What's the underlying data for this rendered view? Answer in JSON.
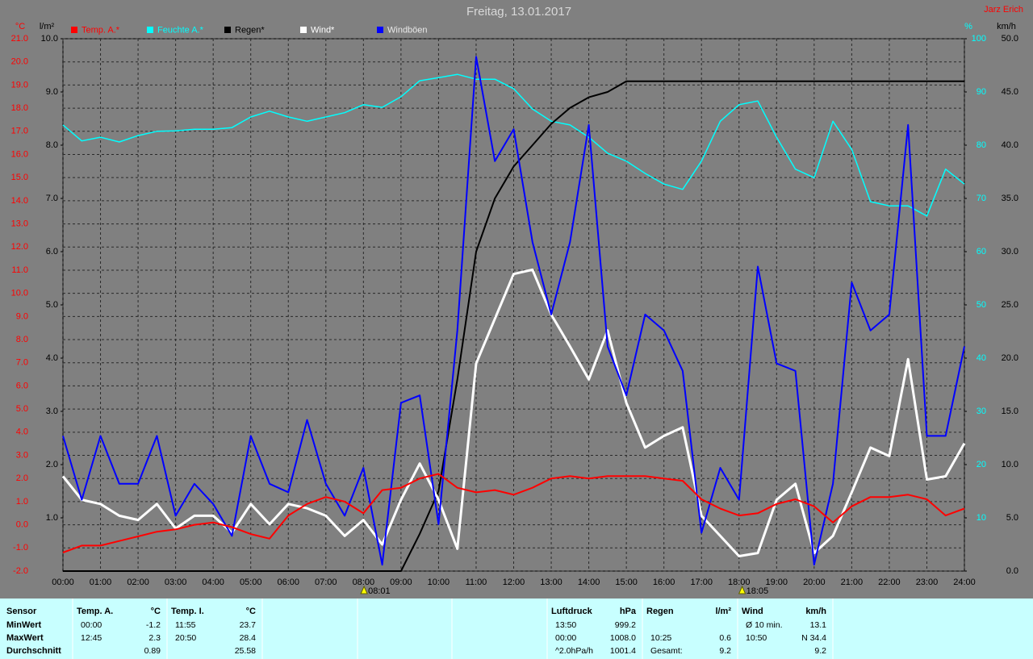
{
  "chart_data": {
    "type": "line",
    "title": "Freitag, 13.01.2017",
    "author": "Jarz Erich",
    "x": [
      0,
      0.5,
      1,
      1.5,
      2,
      2.5,
      3,
      3.5,
      4,
      4.5,
      5,
      5.5,
      6,
      6.5,
      7,
      7.5,
      8,
      8.5,
      9,
      9.5,
      10,
      10.5,
      11,
      11.5,
      12,
      12.5,
      13,
      13.5,
      14,
      14.5,
      15,
      15.5,
      16,
      16.5,
      17,
      17.5,
      18,
      18.5,
      19,
      19.5,
      20,
      20.5,
      21,
      21.5,
      22,
      22.5,
      23,
      23.5,
      24
    ],
    "xlim": [
      0,
      24
    ],
    "xticks": [
      {
        "value": 0,
        "label": "00:00"
      },
      {
        "value": 1,
        "label": "01:00"
      },
      {
        "value": 2,
        "label": "02:00"
      },
      {
        "value": 3,
        "label": "03:00"
      },
      {
        "value": 4,
        "label": "04:00"
      },
      {
        "value": 5,
        "label": "05:00"
      },
      {
        "value": 6,
        "label": "06:00"
      },
      {
        "value": 7,
        "label": "07:00"
      },
      {
        "value": 8,
        "label": "08:00"
      },
      {
        "value": 9,
        "label": "09:00"
      },
      {
        "value": 10,
        "label": "10:00"
      },
      {
        "value": 11,
        "label": "11:00"
      },
      {
        "value": 12,
        "label": "12:00"
      },
      {
        "value": 13,
        "label": "13:00"
      },
      {
        "value": 14,
        "label": "14:00"
      },
      {
        "value": 15,
        "label": "15:00"
      },
      {
        "value": 16,
        "label": "16:00"
      },
      {
        "value": 17,
        "label": "17:00"
      },
      {
        "value": 18,
        "label": "18:00"
      },
      {
        "value": 19,
        "label": "19:00"
      },
      {
        "value": 20,
        "label": "20:00"
      },
      {
        "value": 21,
        "label": "21:00"
      },
      {
        "value": 22,
        "label": "22:00"
      },
      {
        "value": 23,
        "label": "23:00"
      },
      {
        "value": 24,
        "label": "24:00"
      }
    ],
    "ylabel": "°C",
    "ylim": [
      -2,
      21
    ],
    "yticks": [
      {
        "value": -2,
        "label": "-2.0"
      },
      {
        "value": -1,
        "label": "-1.0"
      },
      {
        "value": 0,
        "label": "0.0"
      },
      {
        "value": 1,
        "label": "1.0"
      },
      {
        "value": 2,
        "label": "2.0"
      },
      {
        "value": 3,
        "label": "3.0"
      },
      {
        "value": 4,
        "label": "4.0"
      },
      {
        "value": 5,
        "label": "5.0"
      },
      {
        "value": 6,
        "label": "6.0"
      },
      {
        "value": 7,
        "label": "7.0"
      },
      {
        "value": 8,
        "label": "8.0"
      },
      {
        "value": 9,
        "label": "9.0"
      },
      {
        "value": 10,
        "label": "10.0"
      },
      {
        "value": 11,
        "label": "11.0"
      },
      {
        "value": 12,
        "label": "12.0"
      },
      {
        "value": 13,
        "label": "13.0"
      },
      {
        "value": 14,
        "label": "14.0"
      },
      {
        "value": 15,
        "label": "15.0"
      },
      {
        "value": 16,
        "label": "16.0"
      },
      {
        "value": 17,
        "label": "17.0"
      },
      {
        "value": 18,
        "label": "18.0"
      },
      {
        "value": 19,
        "label": "19.0"
      },
      {
        "value": 20,
        "label": "20.0"
      },
      {
        "value": 21,
        "label": "21.0"
      }
    ],
    "y3label": "l/m²",
    "y3lim": [
      0,
      10
    ],
    "y3ticks": [
      {
        "value": 1,
        "label": "1.0"
      },
      {
        "value": 2,
        "label": "2.0"
      },
      {
        "value": 3,
        "label": "3.0"
      },
      {
        "value": 4,
        "label": "4.0"
      },
      {
        "value": 5,
        "label": "5.0"
      },
      {
        "value": 6,
        "label": "6.0"
      },
      {
        "value": 7,
        "label": "7.0"
      },
      {
        "value": 8,
        "label": "8.0"
      },
      {
        "value": 9,
        "label": "9.0"
      },
      {
        "value": 10,
        "label": "10.0"
      }
    ],
    "y4label": "%",
    "y4lim": [
      0,
      100
    ],
    "y4ticks": [
      10,
      20,
      30,
      40,
      50,
      60,
      70,
      80,
      90,
      100
    ],
    "y2label": "km/h",
    "y2lim": [
      0,
      50
    ],
    "y2ticks": [
      {
        "value": 0,
        "label": "0.0"
      },
      {
        "value": 5,
        "label": "5.0"
      },
      {
        "value": 10,
        "label": "10.0"
      },
      {
        "value": 15,
        "label": "15.0"
      },
      {
        "value": 20,
        "label": "20.0"
      },
      {
        "value": 25,
        "label": "25.0"
      },
      {
        "value": 30,
        "label": "30.0"
      },
      {
        "value": 35,
        "label": "35.0"
      },
      {
        "value": 40,
        "label": "40.0"
      },
      {
        "value": 45,
        "label": "45.0"
      },
      {
        "value": 50,
        "label": "50.0"
      }
    ],
    "axis_colors": {
      "y": "#ff0000",
      "y2": "#000000",
      "y3": "#000000",
      "y4": "#00ffff"
    },
    "grid": true,
    "markers": [
      {
        "value": 8.0167,
        "label": "08:01"
      },
      {
        "value": 18.0833,
        "label": "18:05"
      }
    ],
    "series": [
      {
        "name": "Temp. A.*",
        "color": "#ff0000",
        "axis": "y",
        "values": [
          -1.2,
          -0.9,
          -0.9,
          -0.7,
          -0.5,
          -0.3,
          -0.2,
          0.0,
          0.1,
          -0.1,
          -0.4,
          -0.6,
          0.4,
          0.9,
          1.2,
          1.0,
          0.5,
          1.5,
          1.6,
          2.0,
          2.2,
          1.6,
          1.4,
          1.5,
          1.3,
          1.6,
          2.0,
          2.1,
          2.0,
          2.1,
          2.1,
          2.1,
          2.0,
          1.9,
          1.1,
          0.7,
          0.4,
          0.5,
          0.9,
          1.1,
          0.8,
          0.1,
          0.8,
          1.2,
          1.2,
          1.3,
          1.1,
          0.4,
          0.7
        ]
      },
      {
        "name": "Feuchte A.*",
        "color": "#00ffff",
        "axis": "y4",
        "values": [
          83.8,
          80.8,
          81.5,
          80.6,
          81.8,
          82.6,
          82.7,
          83.0,
          83.0,
          83.3,
          85.3,
          86.4,
          85.3,
          84.5,
          85.3,
          86.1,
          87.6,
          87.1,
          89.1,
          92.1,
          92.7,
          93.3,
          92.4,
          92.4,
          90.6,
          86.8,
          84.5,
          83.8,
          81.5,
          78.5,
          77.0,
          74.7,
          72.7,
          71.7,
          77.0,
          84.5,
          87.6,
          88.3,
          81.5,
          75.5,
          73.9,
          84.5,
          79.2,
          69.4,
          68.6,
          68.6,
          66.7,
          75.5,
          72.7
        ]
      },
      {
        "name": "Regen*",
        "color": "#000000",
        "axis": "y3",
        "values": [
          0,
          0,
          0,
          0,
          0,
          0,
          0,
          0,
          0,
          0,
          0,
          0,
          0,
          0,
          0,
          0,
          0,
          0,
          0,
          0.7,
          1.5,
          3.6,
          6.0,
          7.0,
          7.6,
          8.0,
          8.4,
          8.7,
          8.9,
          9.0,
          9.2,
          9.2,
          9.2,
          9.2,
          9.2,
          9.2,
          9.2,
          9.2,
          9.2,
          9.2,
          9.2,
          9.2,
          9.2,
          9.2,
          9.2,
          9.2,
          9.2,
          9.2,
          9.2
        ]
      },
      {
        "name": "Wind*",
        "color": "#ffffff",
        "axis": "y2",
        "values": [
          8.9,
          6.7,
          6.3,
          5.2,
          4.8,
          6.3,
          4.0,
          5.2,
          5.2,
          3.6,
          6.3,
          4.4,
          6.3,
          5.9,
          5.2,
          3.3,
          4.8,
          2.5,
          6.7,
          10.1,
          6.7,
          2.1,
          19.5,
          23.7,
          27.9,
          28.3,
          24.1,
          21.1,
          18.0,
          22.6,
          15.8,
          11.6,
          12.7,
          13.5,
          5.2,
          3.3,
          1.4,
          1.7,
          6.7,
          8.2,
          1.7,
          3.3,
          7.4,
          11.6,
          10.8,
          19.9,
          8.6,
          8.9,
          12.0
        ]
      },
      {
        "name": "Windböen",
        "color": "#0000ff",
        "axis": "y2",
        "values": [
          12.7,
          6.7,
          12.7,
          8.2,
          8.2,
          12.7,
          5.2,
          8.2,
          6.3,
          3.3,
          12.7,
          8.2,
          7.4,
          14.2,
          8.2,
          5.2,
          9.7,
          0.6,
          15.8,
          16.5,
          4.4,
          22.6,
          48.3,
          38.5,
          41.5,
          30.9,
          24.1,
          30.9,
          41.9,
          21.1,
          16.5,
          24.1,
          22.6,
          18.8,
          3.6,
          9.7,
          6.7,
          28.6,
          19.5,
          18.8,
          0.6,
          8.2,
          27.1,
          22.6,
          24.1,
          41.9,
          12.7,
          12.7,
          21.1
        ]
      }
    ]
  },
  "table": {
    "groups": [
      {
        "header": [
          "Sensor"
        ],
        "rows": [
          [
            "MinWert"
          ],
          [
            "MaxWert"
          ],
          [
            "Durchschnitt"
          ]
        ]
      },
      {
        "header": [
          "Temp. A.",
          "°C"
        ],
        "rows": [
          [
            "00:00",
            "-1.2"
          ],
          [
            "12:45",
            "2.3"
          ],
          [
            null,
            "0.89"
          ]
        ]
      },
      {
        "header": [
          "Temp. I.",
          "°C"
        ],
        "rows": [
          [
            "11:55",
            "23.7"
          ],
          [
            "20:50",
            "28.4"
          ],
          [
            null,
            "25.58"
          ]
        ]
      },
      {
        "header": [
          "Luftdruck",
          "hPa"
        ],
        "rows": [
          [
            "13:50",
            "999.2"
          ],
          [
            "00:00",
            "1008.0"
          ],
          [
            "^2.0hPa/h",
            "1001.4"
          ]
        ]
      },
      {
        "header": [
          "Regen",
          "l/m²"
        ],
        "rows": [
          [
            null,
            null
          ],
          [
            "10:25",
            "0.6"
          ],
          [
            "Gesamt:",
            "9.2"
          ]
        ]
      },
      {
        "header": [
          "Wind",
          "km/h"
        ],
        "rows": [
          [
            "Ø 10 min.",
            "13.1"
          ],
          [
            "10:50",
            "N 34.4"
          ],
          [
            null,
            "9.2"
          ]
        ]
      }
    ]
  }
}
